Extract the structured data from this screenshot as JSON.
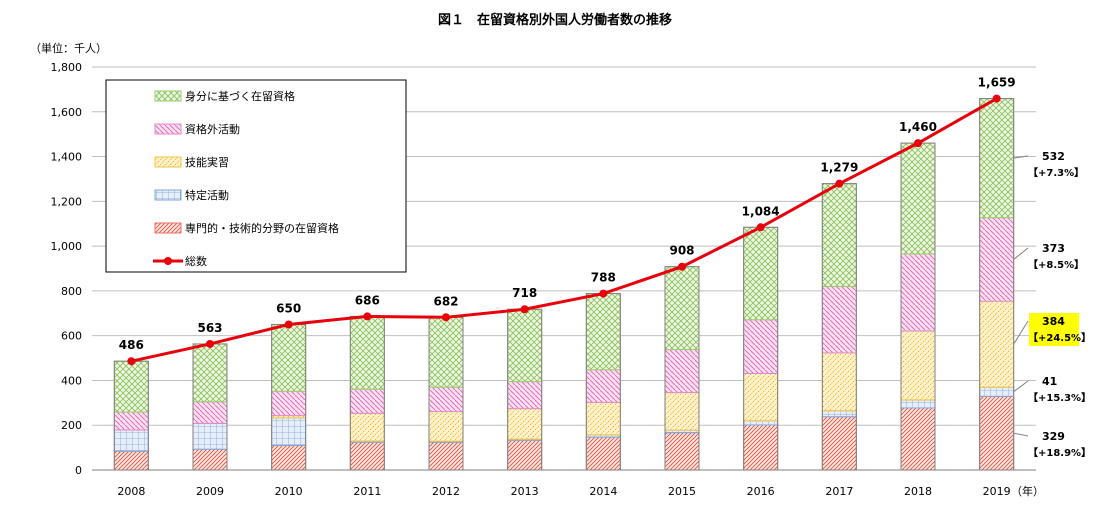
{
  "chart_data": {
    "type": "bar",
    "title": "図１　在留資格別外国人労働者数の推移",
    "unit_label": "（単位：千人）",
    "xlabel": "",
    "ylabel": "",
    "year_suffix": "（年）",
    "ylim": [
      0,
      1800
    ],
    "yticks": [
      0,
      200,
      400,
      600,
      800,
      1000,
      1200,
      1400,
      1600,
      1800
    ],
    "ytick_labels": [
      "0",
      "200",
      "400",
      "600",
      "800",
      "1,000",
      "1,200",
      "1,400",
      "1,600",
      "1,800"
    ],
    "grid": true,
    "legend_position": "top-left",
    "categories": [
      "2008",
      "2009",
      "2010",
      "2011",
      "2012",
      "2013",
      "2014",
      "2015",
      "2016",
      "2017",
      "2018",
      "2019"
    ],
    "series": [
      {
        "name": "専門的・技術的分野の在留資格",
        "color": "#e8736a",
        "values": [
          84,
          93,
          110,
          124,
          124,
          133,
          147,
          167,
          201,
          238,
          277,
          329
        ]
      },
      {
        "name": "特定活動",
        "color": "#7fa7d8",
        "values": [
          95,
          115,
          123,
          6,
          5,
          5,
          10,
          11,
          19,
          27,
          36,
          41
        ]
      },
      {
        "name": "技能実習",
        "color": "#f5c445",
        "values": [
          0,
          0,
          10,
          123,
          132,
          136,
          145,
          168,
          211,
          258,
          308,
          384
        ]
      },
      {
        "name": "資格外活動",
        "color": "#e58ac8",
        "values": [
          80,
          97,
          109,
          108,
          109,
          121,
          146,
          192,
          240,
          297,
          344,
          373
        ]
      },
      {
        "name": "身分に基づく在留資格",
        "color": "#9ccc6c",
        "values": [
          227,
          258,
          298,
          325,
          312,
          323,
          340,
          370,
          413,
          459,
          495,
          532
        ]
      }
    ],
    "total_series": {
      "name": "総数",
      "color": "#e8000b",
      "values": [
        486,
        563,
        650,
        686,
        682,
        718,
        788,
        908,
        1084,
        1279,
        1460,
        1659
      ]
    },
    "total_labels": [
      "486",
      "563",
      "650",
      "686",
      "682",
      "718",
      "788",
      "908",
      "1,084",
      "1,279",
      "1,460",
      "1,659"
    ],
    "annotations_2019": [
      {
        "series": "身分に基づく在留資格",
        "value": "532",
        "change": "【+7.3%】",
        "highlight": false
      },
      {
        "series": "資格外活動",
        "value": "373",
        "change": "【+8.5%】",
        "highlight": false
      },
      {
        "series": "技能実習",
        "value": "384",
        "change": "【+24.5%】",
        "highlight": true
      },
      {
        "series": "特定活動",
        "value": "41",
        "change": "【+15.3%】",
        "highlight": false
      },
      {
        "series": "専門的・技術的分野の在留資格",
        "value": "329",
        "change": "【+18.9%】",
        "highlight": false
      }
    ],
    "highlight_color": "#ffff00"
  }
}
